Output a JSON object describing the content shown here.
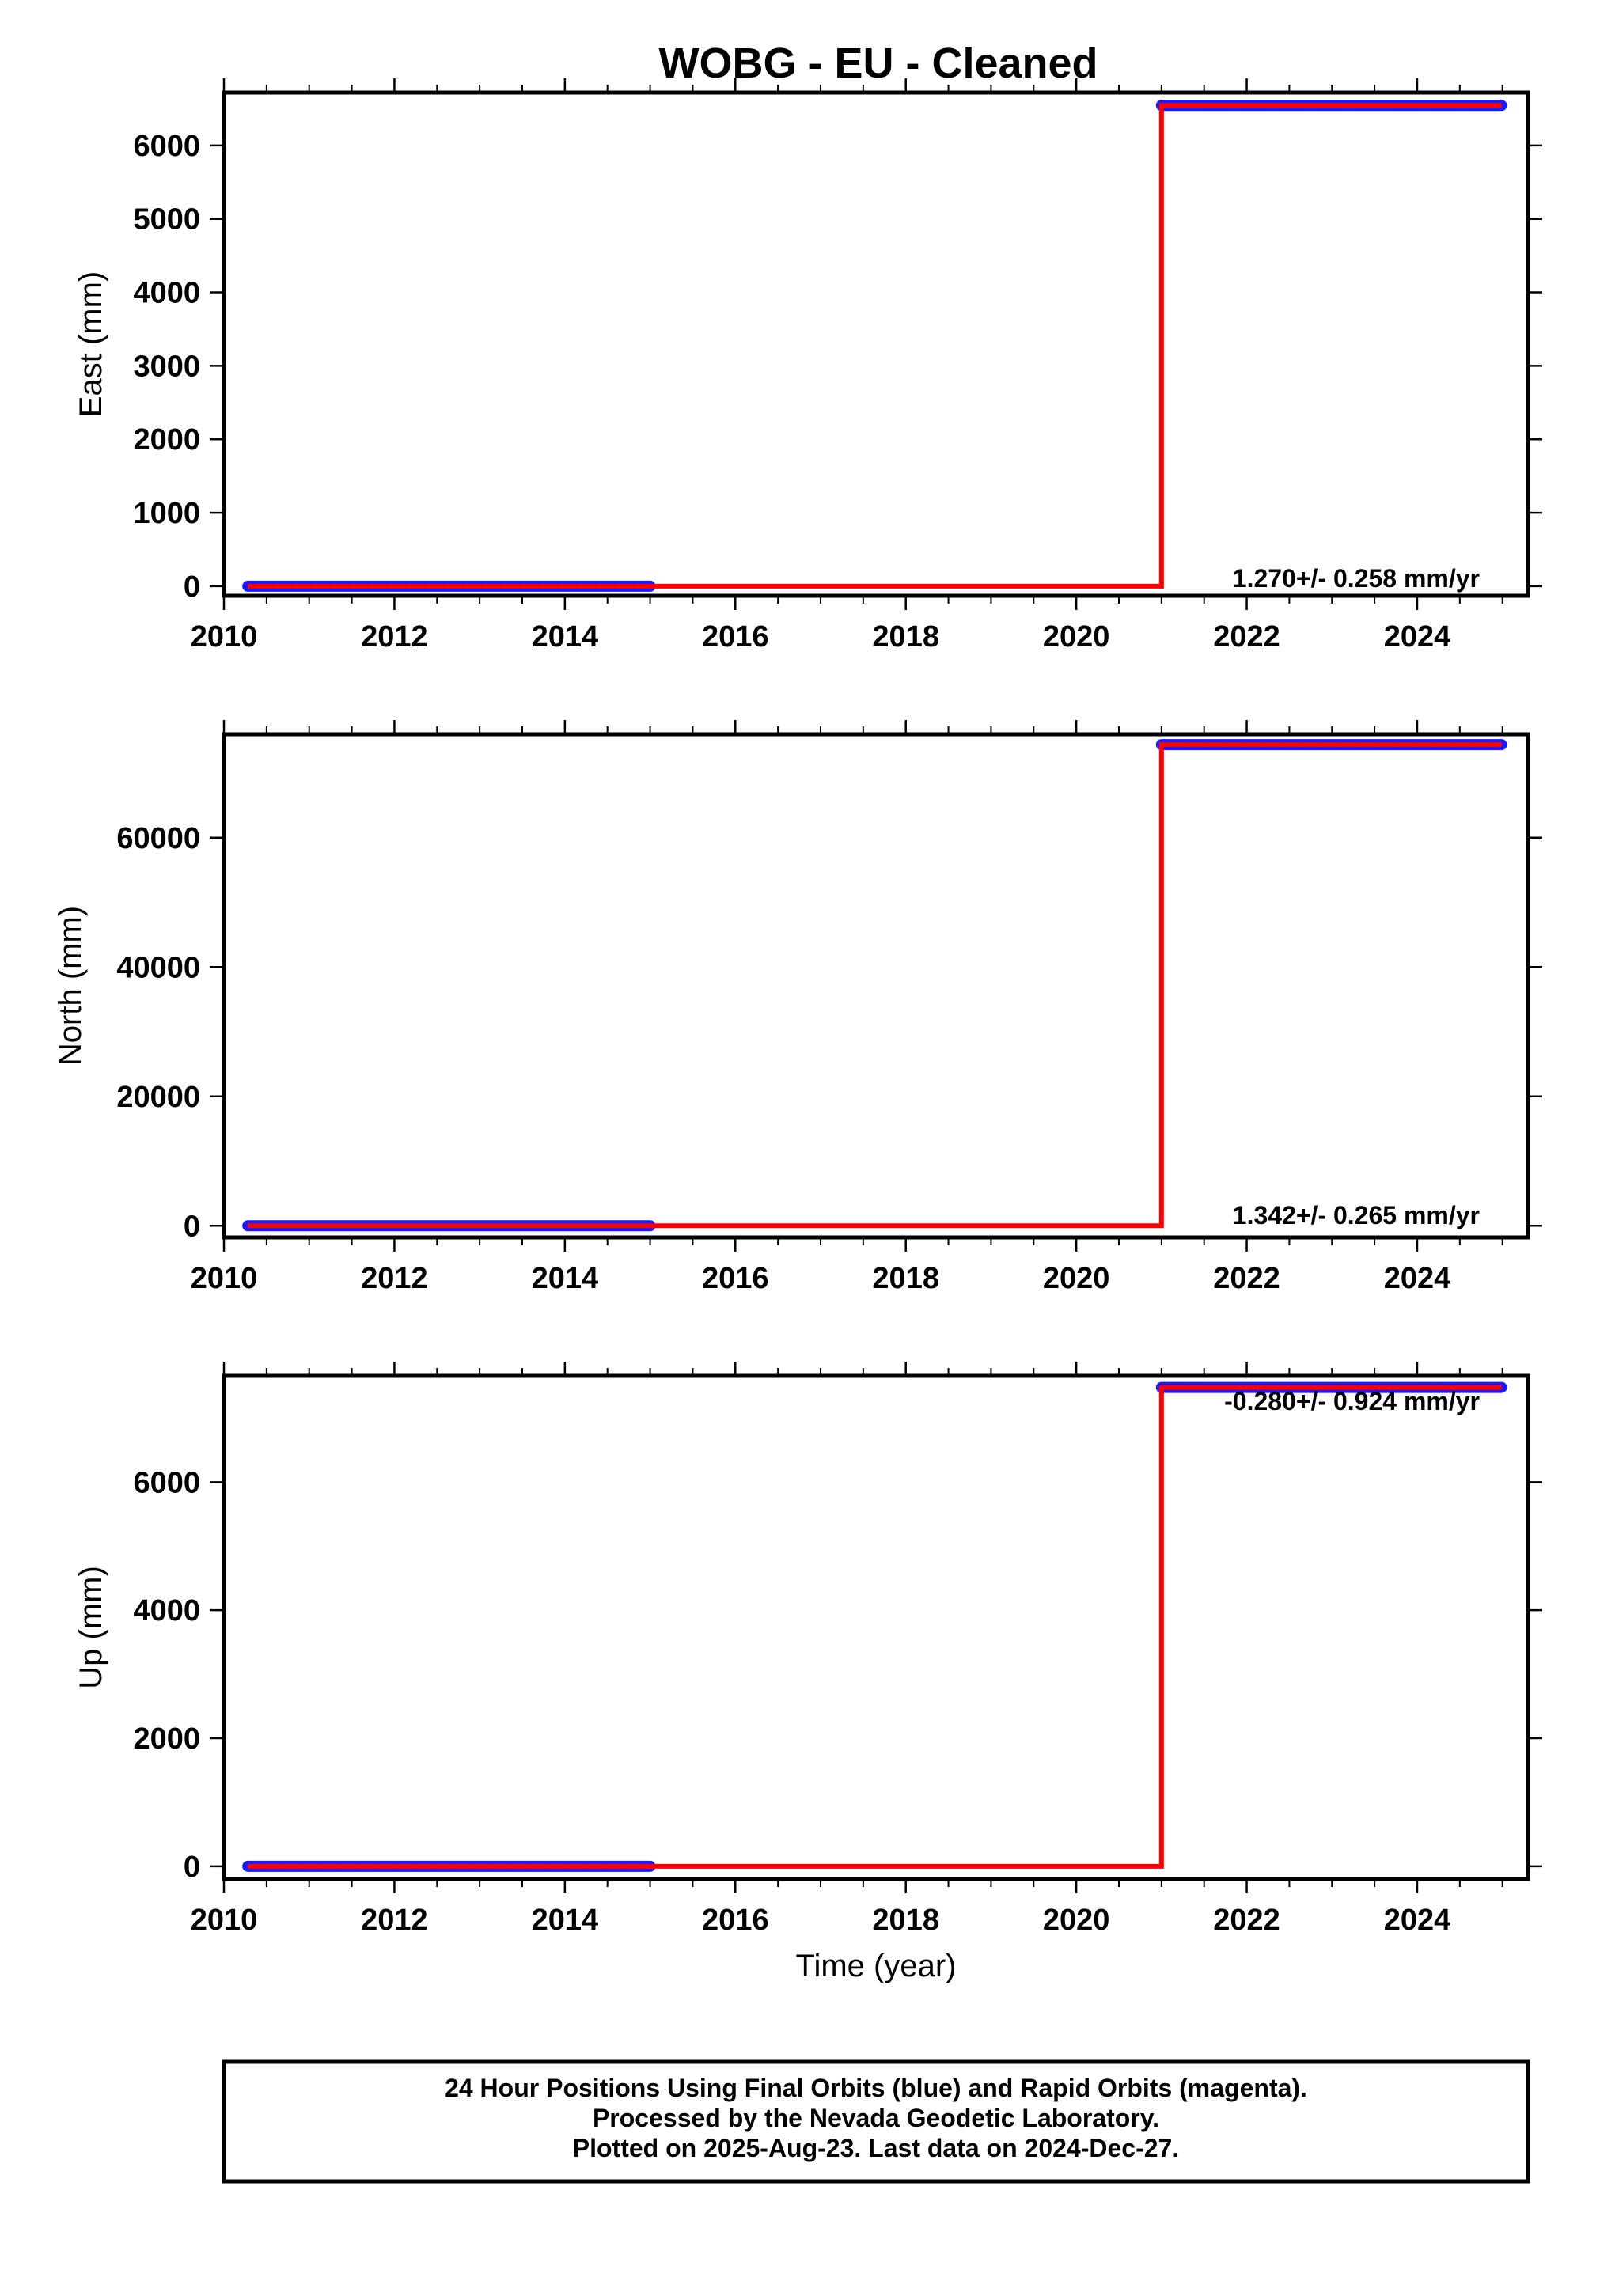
{
  "title": "WOBG  - EU - Cleaned",
  "xlabel": "Time (year)",
  "colors": {
    "final_orbits": "#1a1aff",
    "model": "#ff0000",
    "axis": "#000000"
  },
  "footer": {
    "line1": "24 Hour Positions Using Final Orbits (blue) and Rapid Orbits (magenta).",
    "line2": "Processed by the Nevada Geodetic Laboratory.",
    "line3": "Plotted on 2025-Aug-23. Last data on 2024-Dec-27."
  },
  "chart_data": [
    {
      "type": "scatter",
      "ylabel": "East (mm)",
      "xlim": [
        2010,
        2025.3
      ],
      "ylim": [
        -130,
        6720
      ],
      "xticks": [
        2010,
        2012,
        2014,
        2016,
        2018,
        2020,
        2022,
        2024
      ],
      "yticks": [
        0,
        1000,
        2000,
        3000,
        4000,
        5000,
        6000
      ],
      "rate_label": "1.270+/- 0.258 mm/yr",
      "rate_position": "bottom-right",
      "series": [
        {
          "role": "data",
          "segments": [
            {
              "x_start": 2010.28,
              "x_end": 2015.0,
              "y": 0
            },
            {
              "x_start": 2021.0,
              "x_end": 2024.99,
              "y": 6545
            }
          ]
        },
        {
          "role": "model",
          "points": [
            [
              2010.28,
              0
            ],
            [
              2021.0,
              0
            ],
            [
              2021.0,
              6545
            ],
            [
              2024.99,
              6545
            ]
          ]
        }
      ]
    },
    {
      "type": "scatter",
      "ylabel": "North (mm)",
      "xlim": [
        2010,
        2025.3
      ],
      "ylim": [
        -1800,
        76000
      ],
      "xticks": [
        2010,
        2012,
        2014,
        2016,
        2018,
        2020,
        2022,
        2024
      ],
      "yticks": [
        0,
        20000,
        40000,
        60000
      ],
      "rate_label": "1.342+/- 0.265 mm/yr",
      "rate_position": "bottom-right",
      "series": [
        {
          "role": "data",
          "segments": [
            {
              "x_start": 2010.28,
              "x_end": 2015.0,
              "y": 0
            },
            {
              "x_start": 2021.0,
              "x_end": 2024.99,
              "y": 74400
            }
          ]
        },
        {
          "role": "model",
          "points": [
            [
              2010.28,
              0
            ],
            [
              2021.0,
              0
            ],
            [
              2021.0,
              74400
            ],
            [
              2024.99,
              74400
            ]
          ]
        }
      ]
    },
    {
      "type": "scatter",
      "ylabel": "Up (mm)",
      "xlim": [
        2010,
        2025.3
      ],
      "ylim": [
        -200,
        7660
      ],
      "xticks": [
        2010,
        2012,
        2014,
        2016,
        2018,
        2020,
        2022,
        2024
      ],
      "yticks": [
        0,
        2000,
        4000,
        6000
      ],
      "rate_label": "-0.280+/- 0.924 mm/yr",
      "rate_position": "top-right",
      "series": [
        {
          "role": "data",
          "segments": [
            {
              "x_start": 2010.28,
              "x_end": 2015.0,
              "y": 0
            },
            {
              "x_start": 2021.0,
              "x_end": 2024.99,
              "y": 7480
            }
          ]
        },
        {
          "role": "model",
          "points": [
            [
              2010.28,
              0
            ],
            [
              2021.0,
              0
            ],
            [
              2021.0,
              7480
            ],
            [
              2024.99,
              7480
            ]
          ]
        }
      ]
    }
  ]
}
